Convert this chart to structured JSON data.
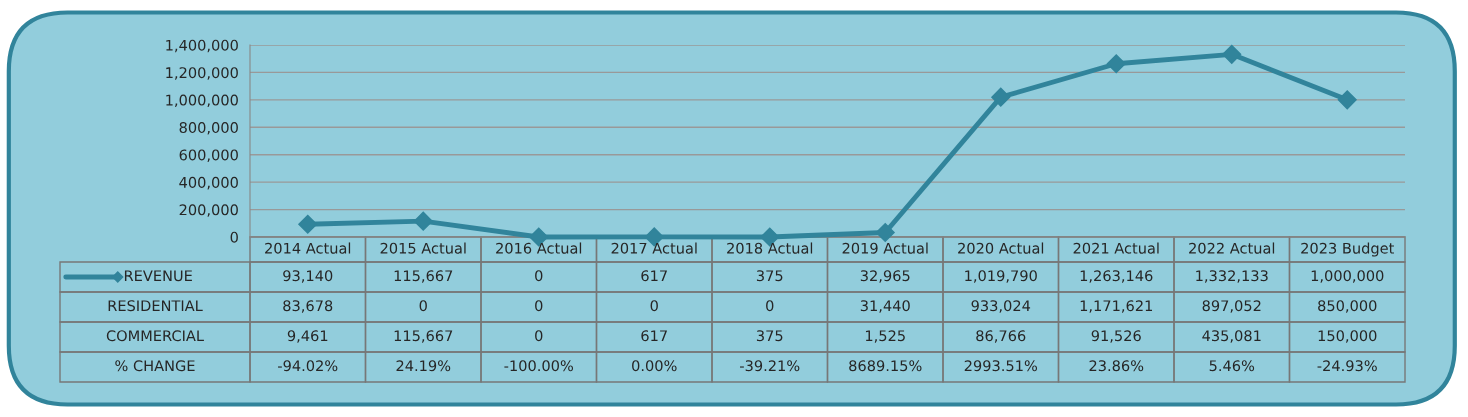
{
  "chart_data": {
    "type": "line",
    "categories": [
      "2014 Actual",
      "2015 Actual",
      "2016 Actual",
      "2017 Actual",
      "2018 Actual",
      "2019 Actual",
      "2020 Actual",
      "2021 Actual",
      "2022 Actual",
      "2023 Budget"
    ],
    "series": [
      {
        "name": "REVENUE",
        "color": "#31849b",
        "values": [
          93140,
          115667,
          0,
          617,
          375,
          32965,
          1019790,
          1263146,
          1332133,
          1000000
        ],
        "value_labels": [
          "93,140",
          "115,667",
          "0",
          "617",
          "375",
          "32,965",
          "1,019,790",
          "1,263,146",
          "1,332,133",
          "1,000,000"
        ]
      },
      {
        "name": "RESIDENTIAL",
        "values": [
          null,
          null,
          null,
          null,
          null,
          null,
          null,
          null,
          null,
          null
        ],
        "value_labels": [
          "83,678",
          "0",
          "0",
          "0",
          "0",
          "31,440",
          "933,024",
          "1,171,621",
          "897,052",
          "850,000"
        ]
      },
      {
        "name": "COMMERCIAL",
        "values": [
          null,
          null,
          null,
          null,
          null,
          null,
          null,
          null,
          null,
          null
        ],
        "value_labels": [
          "9,461",
          "115,667",
          "0",
          "617",
          "375",
          "1,525",
          "86,766",
          "91,526",
          "435,081",
          "150,000"
        ]
      },
      {
        "name": "% CHANGE",
        "values": [
          null,
          null,
          null,
          null,
          null,
          null,
          null,
          null,
          null,
          null
        ],
        "value_labels": [
          "-94.02%",
          "24.19%",
          "-100.00%",
          "0.00%",
          "-39.21%",
          "8689.15%",
          "2993.51%",
          "23.86%",
          "5.46%",
          "-24.93%"
        ]
      }
    ],
    "ylim": [
      0,
      1400000
    ],
    "yticks": [
      {
        "value": 0,
        "label": "0"
      },
      {
        "value": 200000,
        "label": "200,000"
      },
      {
        "value": 400000,
        "label": "400,000"
      },
      {
        "value": 600000,
        "label": "600,000"
      },
      {
        "value": 800000,
        "label": "800,000"
      },
      {
        "value": 1000000,
        "label": "1,000,000"
      },
      {
        "value": 1200000,
        "label": "1,200,000"
      },
      {
        "value": 1400000,
        "label": "1,400,000"
      }
    ],
    "grid": "y",
    "marker": "diamond",
    "line_style": "solid",
    "legend": "bottom left"
  }
}
